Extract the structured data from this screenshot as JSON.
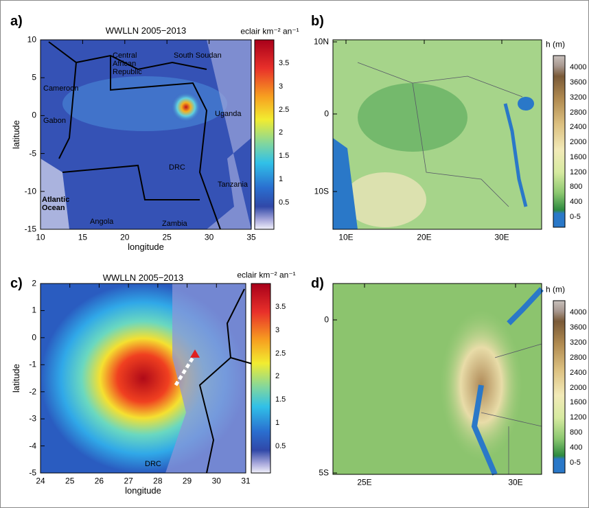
{
  "panels": [
    {
      "letter": "a)",
      "title": "WWLLN 2005−2013",
      "colorbar_label": "eclair km⁻² an⁻¹",
      "colorbar_ticks": [
        3.5,
        3,
        2.5,
        2,
        1.5,
        1,
        0.5
      ],
      "xticks": [
        10,
        15,
        20,
        25,
        30,
        35
      ],
      "yticks": [
        10,
        5,
        0,
        -5,
        -10,
        -15
      ],
      "xlabel": "longitude",
      "ylabel": "latitude",
      "places": [
        "Central African Republic",
        "South Soudan",
        "Cameroon",
        "Gabon",
        "Uganda",
        "DRC",
        "Tanzania",
        "Atlantic Ocean",
        "Angola",
        "Zambia"
      ]
    },
    {
      "letter": "b)",
      "colorbar_label": "h (m)",
      "colorbar_ticks": [
        4000,
        3600,
        3200,
        2800,
        2400,
        2000,
        1600,
        1200,
        800,
        400,
        "0-5"
      ],
      "xticks": [
        "10E",
        "20E",
        "30E"
      ],
      "yticks": [
        "10N",
        0,
        "10S"
      ]
    },
    {
      "letter": "c)",
      "title": "WWLLN 2005−2013",
      "colorbar_label": "eclair km⁻² an⁻¹",
      "colorbar_ticks": [
        3.5,
        3,
        2.5,
        2,
        1.5,
        1,
        0.5
      ],
      "xticks": [
        24,
        25,
        26,
        27,
        28,
        29,
        30,
        31
      ],
      "yticks": [
        2,
        1,
        0,
        -1,
        -2,
        -3,
        -4,
        -5
      ],
      "xlabel": "longitude",
      "ylabel": "latitude",
      "places": [
        "DRC"
      ]
    },
    {
      "letter": "d)",
      "colorbar_label": "h (m)",
      "colorbar_ticks": [
        4000,
        3600,
        3200,
        2800,
        2400,
        2000,
        1600,
        1200,
        800,
        400,
        "0-5"
      ],
      "xticks": [
        "25E",
        "30E"
      ],
      "yticks": [
        0,
        "5S"
      ]
    }
  ]
}
